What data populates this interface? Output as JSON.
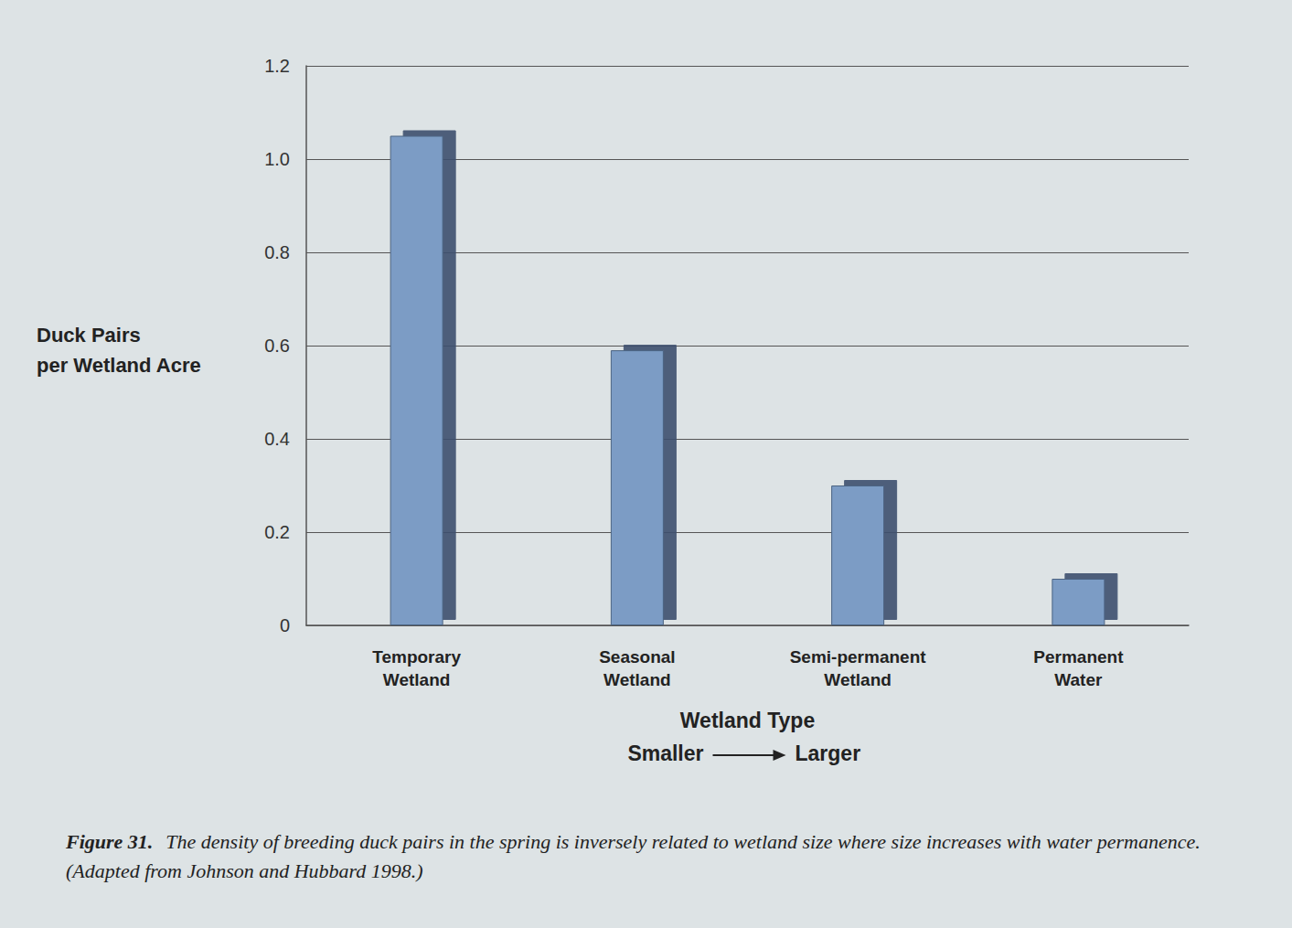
{
  "chart_data": {
    "type": "bar",
    "title": "Figure 31.",
    "subtitle": "The density of breeding duck pairs in the spring is inversely related to wetland size where size increases with water permanence. (Adapted from Johnson and Hubbard 1998.)",
    "x_label": "Wetland Type",
    "y_label": "Duck Pairs per Wetland Acre",
    "annotations": [
      "Smaller",
      "Larger"
    ],
    "categories": [
      "Temporary Wetland",
      "Seasonal Wetland",
      "Semi-permanent Wetland",
      "Permanent Water"
    ],
    "values": [
      1.05,
      0.59,
      0.3,
      0.1
    ],
    "color": "#7b9cc5",
    "ylim": [
      0,
      1.2
    ],
    "yticks": [
      0,
      0.2,
      0.4,
      0.6,
      0.8,
      {
        "value": 1,
        "label": "1.0"
      },
      1.2
    ],
    "grid": true
  }
}
